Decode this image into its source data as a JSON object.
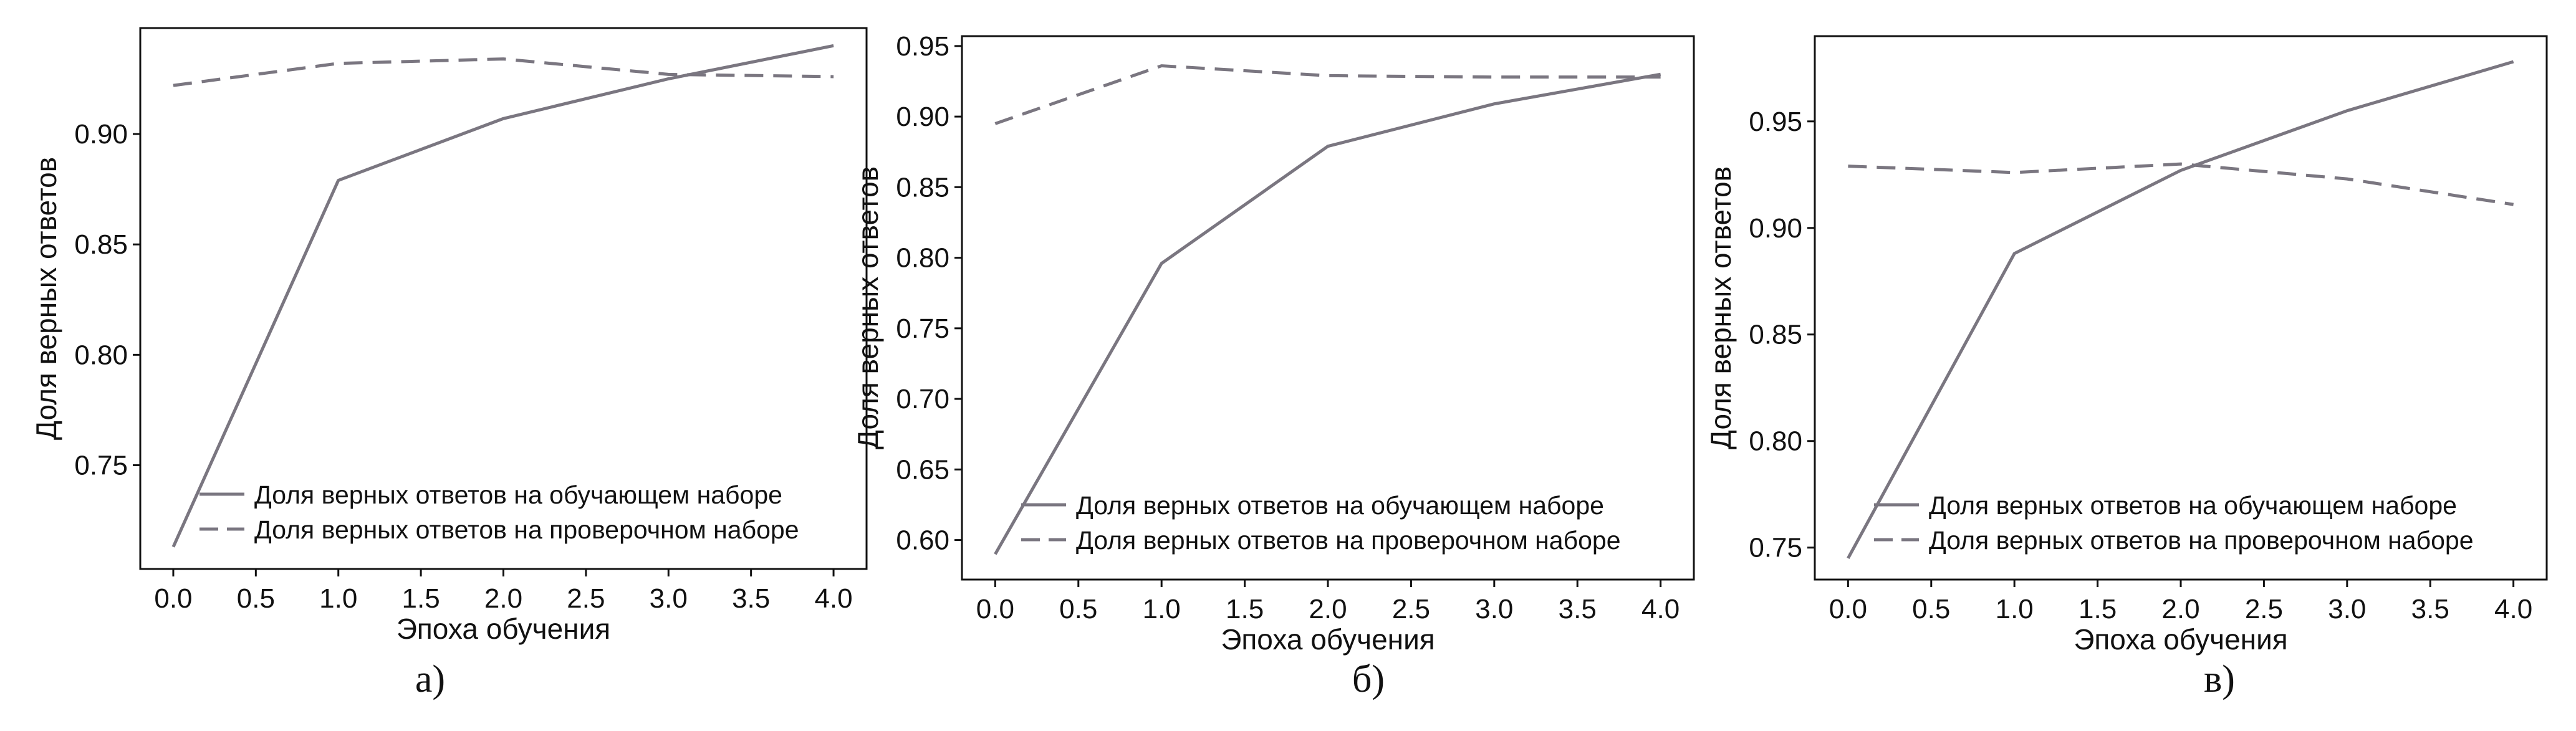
{
  "colors": {
    "line": "#7a7680",
    "axis": "#111111",
    "text": "#111111"
  },
  "chart_data": [
    {
      "type": "line",
      "panel_label": "а)",
      "xlabel": "Эпоха обучения",
      "ylabel": "Доля верных ответов",
      "xlim": [
        -0.2,
        4.2
      ],
      "ylim": [
        0.703,
        0.948
      ],
      "xticks": [
        "0.0",
        "0.5",
        "1.0",
        "1.5",
        "2.0",
        "2.5",
        "3.0",
        "3.5",
        "4.0"
      ],
      "yticks": [
        "0.75",
        "0.80",
        "0.85",
        "0.90"
      ],
      "grid": false,
      "legend_position": "bottom-right",
      "x": [
        0,
        1,
        2,
        3,
        4
      ],
      "series": [
        {
          "name": "Доля верных ответов на обучающем наборе",
          "style": "solid",
          "values": [
            0.713,
            0.879,
            0.907,
            0.925,
            0.94
          ]
        },
        {
          "name": "Доля верных ответов на проверочном наборе",
          "style": "dashed",
          "values": [
            0.922,
            0.932,
            0.934,
            0.927,
            0.926
          ]
        }
      ]
    },
    {
      "type": "line",
      "panel_label": "б)",
      "xlabel": "Эпоха обучения",
      "ylabel": "Доля верных ответов",
      "xlim": [
        -0.2,
        4.2
      ],
      "ylim": [
        0.572,
        0.957
      ],
      "xticks": [
        "0.0",
        "0.5",
        "1.0",
        "1.5",
        "2.0",
        "2.5",
        "3.0",
        "3.5",
        "4.0"
      ],
      "yticks": [
        "0.60",
        "0.65",
        "0.70",
        "0.75",
        "0.80",
        "0.85",
        "0.90",
        "0.95"
      ],
      "grid": false,
      "legend_position": "bottom-right",
      "x": [
        0,
        1,
        2,
        3,
        4
      ],
      "series": [
        {
          "name": "Доля верных ответов на обучающем наборе",
          "style": "solid",
          "values": [
            0.59,
            0.796,
            0.879,
            0.909,
            0.93
          ]
        },
        {
          "name": "Доля верных ответов на проверочном наборе",
          "style": "dashed",
          "values": [
            0.895,
            0.936,
            0.929,
            0.928,
            0.928
          ]
        }
      ]
    },
    {
      "type": "line",
      "panel_label": "в)",
      "xlabel": "Эпоха обучения",
      "ylabel": "Доля верных ответов",
      "xlim": [
        -0.2,
        4.2
      ],
      "ylim": [
        0.735,
        0.99
      ],
      "xticks": [
        "0.0",
        "0.5",
        "1.0",
        "1.5",
        "2.0",
        "2.5",
        "3.0",
        "3.5",
        "4.0"
      ],
      "yticks": [
        "0.75",
        "0.80",
        "0.85",
        "0.90",
        "0.95"
      ],
      "grid": false,
      "legend_position": "bottom-right",
      "x": [
        0,
        1,
        2,
        3,
        4
      ],
      "series": [
        {
          "name": "Доля верных ответов на обучающем наборе",
          "style": "solid",
          "values": [
            0.745,
            0.888,
            0.927,
            0.955,
            0.978
          ]
        },
        {
          "name": "Доля верных ответов на проверочном наборе",
          "style": "dashed",
          "values": [
            0.929,
            0.926,
            0.93,
            0.923,
            0.911
          ]
        }
      ]
    }
  ]
}
